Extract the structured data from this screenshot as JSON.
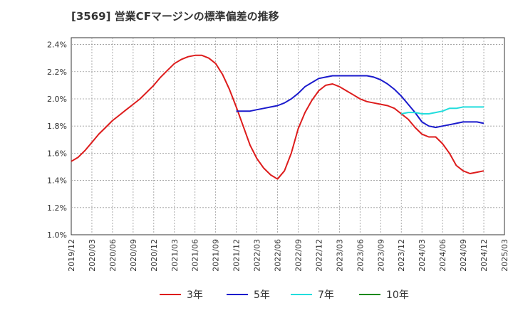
{
  "chart_data": {
    "type": "line",
    "title": "[3569]  営業CFマージンの標準偏差の推移",
    "xlabel": "",
    "ylabel": "",
    "ylim": [
      0.01,
      0.0245
    ],
    "y_ticks": [
      0.01,
      0.012,
      0.014,
      0.016,
      0.018,
      0.02,
      0.022,
      0.024
    ],
    "y_tick_labels": [
      "1.0%",
      "1.2%",
      "1.4%",
      "1.6%",
      "1.8%",
      "2.0%",
      "2.2%",
      "2.4%"
    ],
    "x_ticks": [
      "2019/12",
      "2020/03",
      "2020/06",
      "2020/09",
      "2020/12",
      "2021/03",
      "2021/06",
      "2021/09",
      "2021/12",
      "2022/03",
      "2022/06",
      "2022/09",
      "2022/12",
      "2023/03",
      "2023/06",
      "2023/09",
      "2023/12",
      "2024/03",
      "2024/06",
      "2024/09",
      "2024/12",
      "2025/03"
    ],
    "grid": true,
    "legend_position": "bottom",
    "series": [
      {
        "name": "3年",
        "color": "#dd1c1c",
        "x": [
          "2019/12",
          "2020/01",
          "2020/02",
          "2020/03",
          "2020/04",
          "2020/05",
          "2020/06",
          "2020/07",
          "2020/08",
          "2020/09",
          "2020/10",
          "2020/11",
          "2020/12",
          "2021/01",
          "2021/02",
          "2021/03",
          "2021/04",
          "2021/05",
          "2021/06",
          "2021/07",
          "2021/08",
          "2021/09",
          "2021/10",
          "2021/11",
          "2021/12",
          "2022/01",
          "2022/02",
          "2022/03",
          "2022/04",
          "2022/05",
          "2022/06",
          "2022/07",
          "2022/08",
          "2022/09",
          "2022/10",
          "2022/11",
          "2022/12",
          "2023/01",
          "2023/02",
          "2023/03",
          "2023/04",
          "2023/05",
          "2023/06",
          "2023/07",
          "2023/08",
          "2023/09",
          "2023/10",
          "2023/11",
          "2023/12",
          "2024/01",
          "2024/02",
          "2024/03",
          "2024/04",
          "2024/05",
          "2024/06",
          "2024/07",
          "2024/08",
          "2024/09",
          "2024/10",
          "2024/11",
          "2024/12"
        ],
        "values": [
          0.0154,
          0.0157,
          0.0162,
          0.0168,
          0.0174,
          0.0179,
          0.0184,
          0.0188,
          0.0192,
          0.0196,
          0.02,
          0.0205,
          0.021,
          0.0216,
          0.0221,
          0.0226,
          0.0229,
          0.0231,
          0.0232,
          0.0232,
          0.023,
          0.0226,
          0.0218,
          0.0207,
          0.0194,
          0.018,
          0.0166,
          0.0156,
          0.0149,
          0.0144,
          0.0141,
          0.0147,
          0.016,
          0.0178,
          0.019,
          0.0199,
          0.0206,
          0.021,
          0.0211,
          0.0209,
          0.0206,
          0.0203,
          0.02,
          0.0198,
          0.0197,
          0.0196,
          0.0195,
          0.0193,
          0.0189,
          0.0185,
          0.0179,
          0.0174,
          0.0172,
          0.0172,
          0.0167,
          0.016,
          0.0151,
          0.0147,
          0.0145,
          0.0146,
          0.0147
        ]
      },
      {
        "name": "5年",
        "color": "#1a1acc",
        "x": [
          "2021/12",
          "2022/01",
          "2022/02",
          "2022/03",
          "2022/04",
          "2022/05",
          "2022/06",
          "2022/07",
          "2022/08",
          "2022/09",
          "2022/10",
          "2022/11",
          "2022/12",
          "2023/01",
          "2023/02",
          "2023/03",
          "2023/04",
          "2023/05",
          "2023/06",
          "2023/07",
          "2023/08",
          "2023/09",
          "2023/10",
          "2023/11",
          "2023/12",
          "2024/01",
          "2024/02",
          "2024/03",
          "2024/04",
          "2024/05",
          "2024/06",
          "2024/07",
          "2024/08",
          "2024/09",
          "2024/10",
          "2024/11",
          "2024/12"
        ],
        "values": [
          0.0191,
          0.0191,
          0.0191,
          0.0192,
          0.0193,
          0.0194,
          0.0195,
          0.0197,
          0.02,
          0.0204,
          0.0209,
          0.0212,
          0.0215,
          0.0216,
          0.0217,
          0.0217,
          0.0217,
          0.0217,
          0.0217,
          0.0217,
          0.0216,
          0.0214,
          0.0211,
          0.0207,
          0.0202,
          0.0196,
          0.019,
          0.0183,
          0.018,
          0.0179,
          0.018,
          0.0181,
          0.0182,
          0.0183,
          0.0183,
          0.0183,
          0.0182
        ]
      },
      {
        "name": "7年",
        "color": "#22dddd",
        "x": [
          "2023/12",
          "2024/01",
          "2024/02",
          "2024/03",
          "2024/04",
          "2024/05",
          "2024/06",
          "2024/07",
          "2024/08",
          "2024/09",
          "2024/10",
          "2024/11",
          "2024/12"
        ],
        "values": [
          0.0189,
          0.019,
          0.019,
          0.0189,
          0.0189,
          0.019,
          0.0191,
          0.0193,
          0.0193,
          0.0194,
          0.0194,
          0.0194,
          0.0194
        ]
      },
      {
        "name": "10年",
        "color": "#1a8a1a",
        "x": [],
        "values": []
      }
    ]
  }
}
